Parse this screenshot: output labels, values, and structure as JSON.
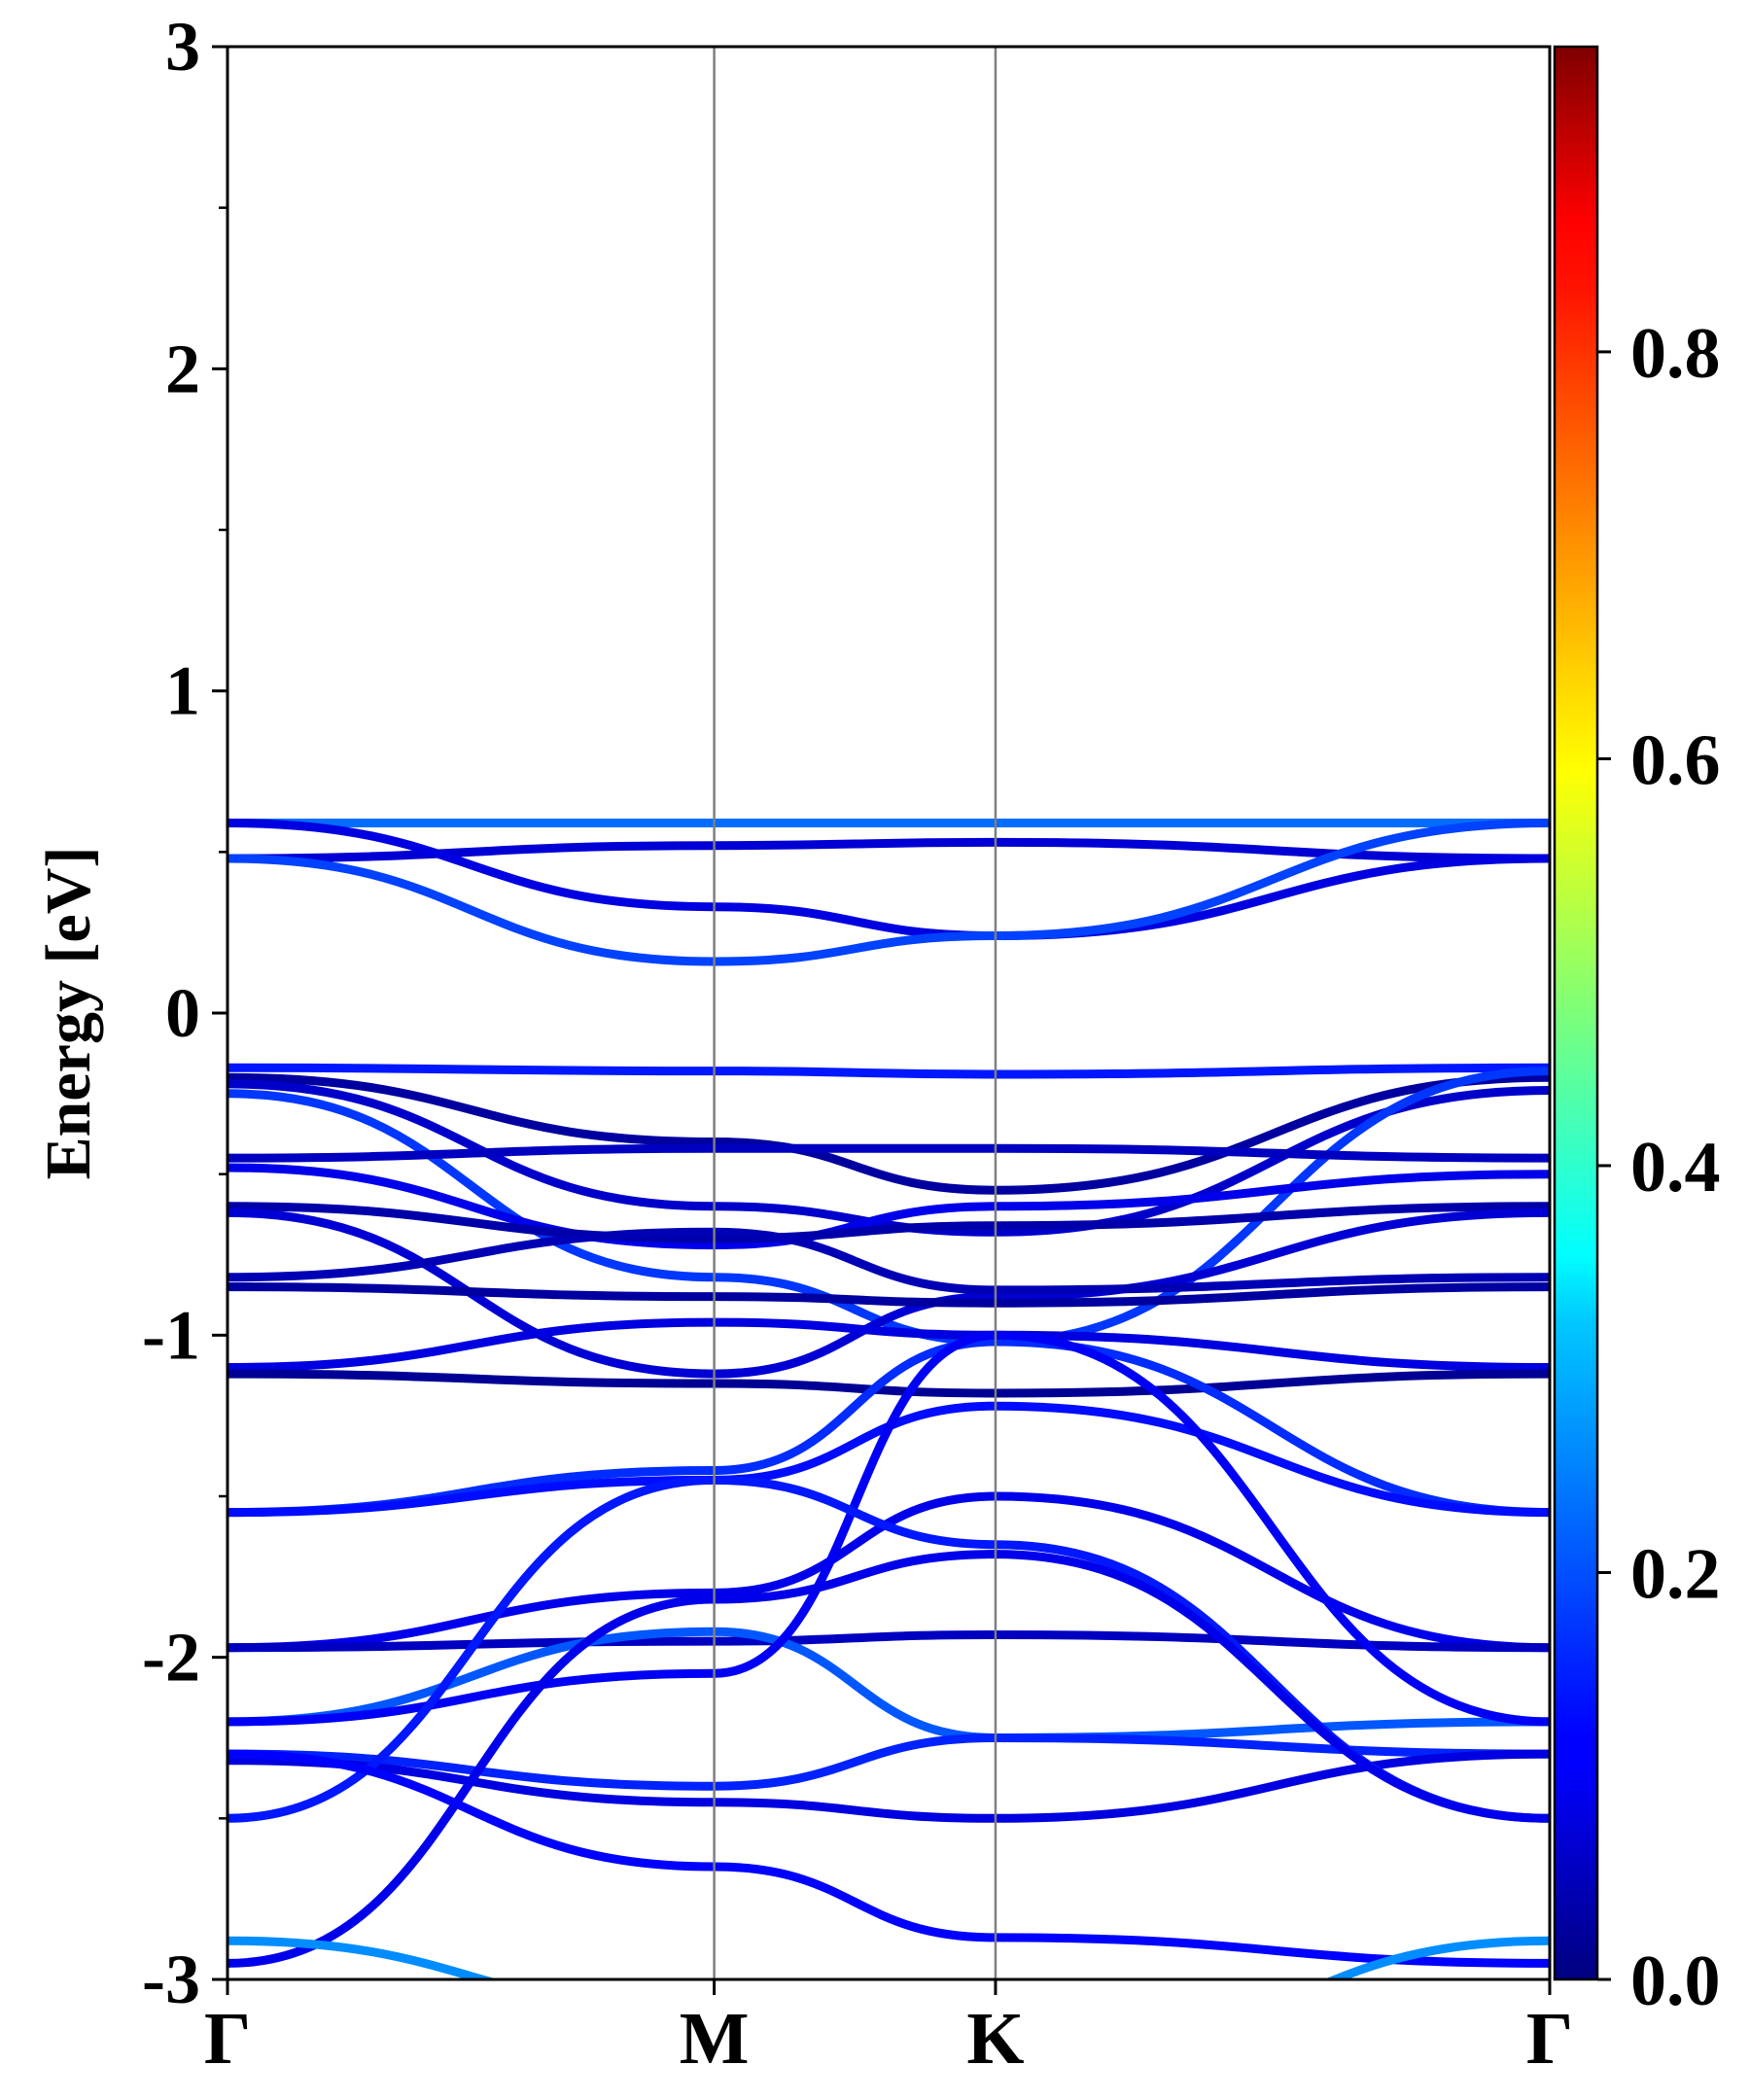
{
  "chart_data": {
    "type": "line",
    "subtype": "band-structure-projected",
    "ylabel": "Energy [eV]",
    "ylim": [
      -3,
      3
    ],
    "yticks": [
      -3,
      -2,
      -1,
      0,
      1,
      2,
      3
    ],
    "ytick_labels": [
      "-3",
      "-2",
      "-1",
      "0",
      "1",
      "2",
      "3"
    ],
    "xlim": [
      0,
      4.7
    ],
    "kpath": [
      {
        "label": "Γ",
        "x": 0
      },
      {
        "label": "M",
        "x": 1.73
      },
      {
        "label": "K",
        "x": 2.73
      },
      {
        "label": "Γ",
        "x": 4.7
      }
    ],
    "colorbar": {
      "colormap": "jet",
      "range": [
        0.0,
        0.95
      ],
      "ticks": [
        0.0,
        0.2,
        0.4,
        0.6,
        0.8
      ],
      "tick_labels": [
        "0.0",
        "0.2",
        "0.4",
        "0.6",
        "0.8"
      ]
    },
    "bands": [
      {
        "energies": [
          0.59,
          0.59,
          0.59,
          0.59
        ],
        "weight": 0.22
      },
      {
        "energies": [
          0.48,
          0.52,
          0.53,
          0.48
        ],
        "weight": 0.08
      },
      {
        "energies": [
          0.59,
          0.33,
          0.24,
          0.48
        ],
        "weight": 0.09
      },
      {
        "energies": [
          0.48,
          0.16,
          0.24,
          0.59
        ],
        "weight": 0.18
      },
      {
        "energies": [
          -0.17,
          -0.18,
          -0.19,
          -0.17
        ],
        "weight": 0.14
      },
      {
        "energies": [
          -0.2,
          -0.4,
          -0.55,
          -0.2
        ],
        "weight": 0.03
      },
      {
        "energies": [
          -0.22,
          -0.6,
          -0.68,
          -0.24
        ],
        "weight": 0.07
      },
      {
        "energies": [
          -0.25,
          -0.82,
          -1.02,
          -0.18
        ],
        "weight": 0.17
      },
      {
        "energies": [
          -0.45,
          -0.42,
          -0.42,
          -0.45
        ],
        "weight": 0.06
      },
      {
        "energies": [
          -0.48,
          -0.72,
          -0.6,
          -0.5
        ],
        "weight": 0.1
      },
      {
        "energies": [
          -0.6,
          -0.7,
          -0.66,
          -0.6
        ],
        "weight": 0.04
      },
      {
        "energies": [
          -0.62,
          -1.12,
          -0.88,
          -0.62
        ],
        "weight": 0.08
      },
      {
        "energies": [
          -0.82,
          -0.68,
          -0.86,
          -0.82
        ],
        "weight": 0.05
      },
      {
        "energies": [
          -0.85,
          -0.88,
          -0.9,
          -0.85
        ],
        "weight": 0.03
      },
      {
        "energies": [
          -1.1,
          -0.96,
          -1.0,
          -1.1
        ],
        "weight": 0.09
      },
      {
        "energies": [
          -1.12,
          -1.15,
          -1.18,
          -1.12
        ],
        "weight": 0.02
      },
      {
        "energies": [
          -1.55,
          -1.42,
          -1.02,
          -1.55
        ],
        "weight": 0.16
      },
      {
        "energies": [
          -1.55,
          -1.45,
          -1.22,
          -1.55
        ],
        "weight": 0.13
      },
      {
        "energies": [
          -1.97,
          -1.8,
          -1.5,
          -1.97
        ],
        "weight": 0.1
      },
      {
        "energies": [
          -1.97,
          -1.95,
          -1.93,
          -1.97
        ],
        "weight": 0.06
      },
      {
        "energies": [
          -2.2,
          -1.92,
          -2.25,
          -2.2
        ],
        "weight": 0.2
      },
      {
        "energies": [
          -2.2,
          -2.05,
          -1.0,
          -2.2
        ],
        "weight": 0.11
      },
      {
        "energies": [
          -2.3,
          -2.4,
          -2.25,
          -2.3
        ],
        "weight": 0.15
      },
      {
        "energies": [
          -2.32,
          -2.45,
          -2.5,
          -2.3
        ],
        "weight": 0.09
      },
      {
        "energies": [
          -2.5,
          -1.45,
          -1.65,
          -2.5
        ],
        "weight": 0.14
      },
      {
        "energies": [
          -2.95,
          -1.82,
          -1.68,
          -2.5
        ],
        "weight": 0.1
      },
      {
        "energies": [
          -2.3,
          -2.65,
          -2.87,
          -2.95
        ],
        "weight": 0.12
      },
      {
        "energies": [
          -2.88,
          -3.1,
          -3.3,
          -2.88
        ],
        "weight": 0.25
      }
    ]
  }
}
